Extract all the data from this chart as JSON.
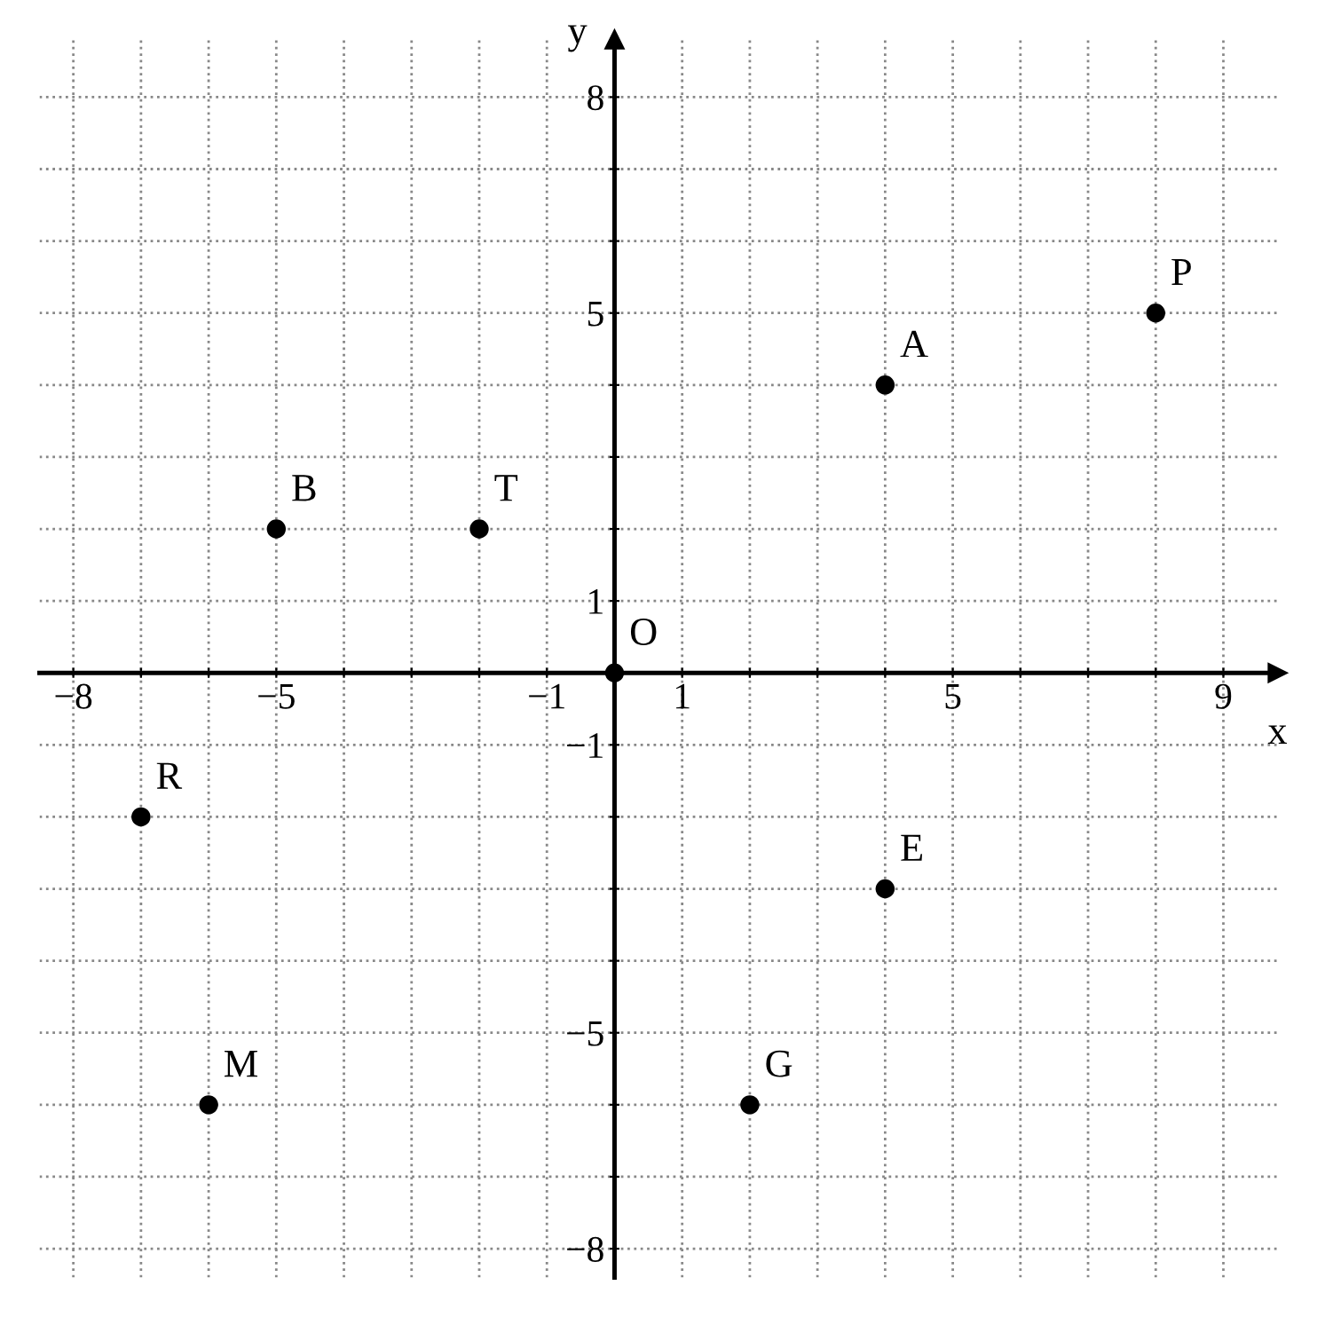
{
  "chart_data": {
    "type": "scatter",
    "xlabel": "x",
    "ylabel": "y",
    "x": [
      0,
      8,
      4,
      -5,
      -2,
      -7,
      4,
      -6,
      2
    ],
    "values": [
      0,
      5,
      4,
      2,
      2,
      -2,
      -3,
      -6,
      -6
    ],
    "color": "#000000",
    "marker": "circle",
    "grid": true,
    "xlim": [
      -8.5,
      9.8
    ],
    "ylim": [
      -8.4,
      8.8
    ],
    "xticks": [
      -8,
      {
        "value": -7,
        "label": null
      },
      {
        "value": -6,
        "label": null
      },
      -5,
      {
        "value": -4,
        "label": null
      },
      {
        "value": -3,
        "label": null
      },
      {
        "value": -2,
        "label": null
      },
      -1,
      1,
      {
        "value": 2,
        "label": null
      },
      {
        "value": 3,
        "label": null
      },
      {
        "value": 4,
        "label": null
      },
      5,
      {
        "value": 6,
        "label": null
      },
      {
        "value": 7,
        "label": null
      },
      {
        "value": 8,
        "label": null
      },
      9
    ],
    "yticks": [
      -8,
      {
        "value": -7,
        "label": null
      },
      {
        "value": -6,
        "label": null
      },
      -5,
      {
        "value": -4,
        "label": null
      },
      {
        "value": -3,
        "label": null
      },
      {
        "value": -2,
        "label": null
      },
      -1,
      1,
      {
        "value": 2,
        "label": null
      },
      {
        "value": 3,
        "label": null
      },
      {
        "value": 4,
        "label": null
      },
      5,
      {
        "value": 6,
        "label": null
      },
      {
        "value": 7,
        "label": null
      },
      8
    ],
    "annotations": [
      {
        "text": "O",
        "x": 0,
        "y": 0
      },
      {
        "text": "P",
        "x": 8,
        "y": 5
      },
      {
        "text": "A",
        "x": 4,
        "y": 4
      },
      {
        "text": "B",
        "x": -5,
        "y": 2
      },
      {
        "text": "T",
        "x": -2,
        "y": 2
      },
      {
        "text": "R",
        "x": -7,
        "y": -2
      },
      {
        "text": "E",
        "x": 4,
        "y": -3
      },
      {
        "text": "M",
        "x": -6,
        "y": -6
      },
      {
        "text": "G",
        "x": 2,
        "y": -6
      }
    ]
  }
}
